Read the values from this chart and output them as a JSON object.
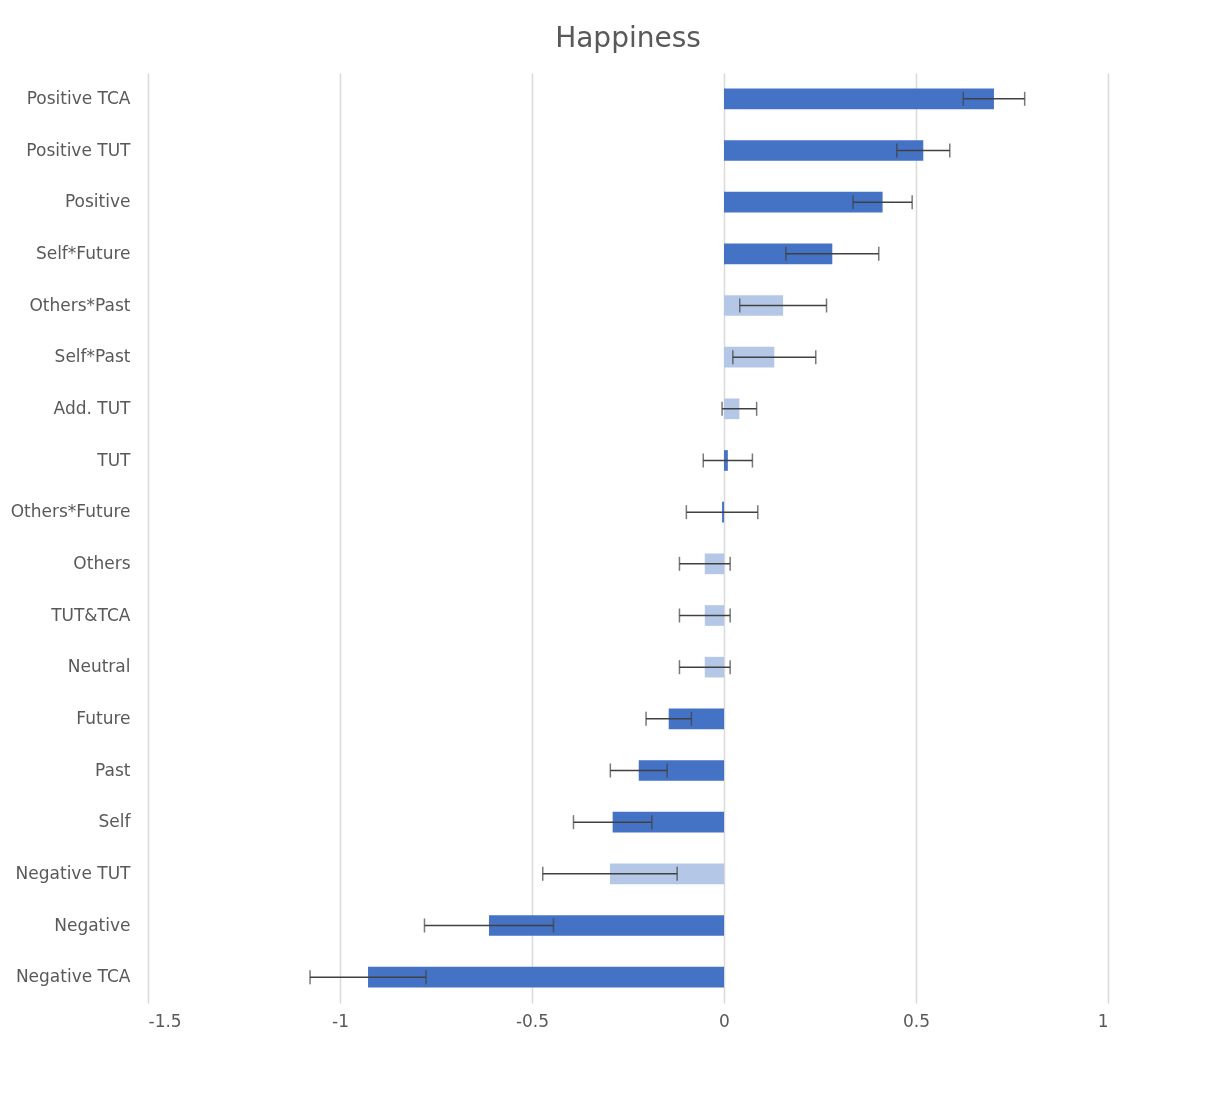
{
  "chart_data": {
    "type": "bar",
    "orientation": "horizontal",
    "title": "Happiness",
    "categories": [
      "Positive TCA",
      "Positive TUT",
      "Positive",
      "Self*Future",
      "Others*Past",
      "Self*Past",
      "Add. TUT",
      "TUT",
      "Others*Future",
      "Others",
      "TUT&TCA",
      "Neutral",
      "Future",
      "Past",
      "Self",
      "Negative TUT",
      "Negative",
      "Negative TCA"
    ],
    "values": [
      0.703,
      0.519,
      0.413,
      0.282,
      0.154,
      0.131,
      0.04,
      0.01,
      -0.005,
      -0.05,
      -0.05,
      -0.05,
      -0.144,
      -0.222,
      -0.29,
      -0.297,
      -0.612,
      -0.927
    ],
    "errors": [
      0.08,
      0.069,
      0.077,
      0.121,
      0.113,
      0.108,
      0.045,
      0.064,
      0.093,
      0.066,
      0.066,
      0.066,
      0.059,
      0.074,
      0.102,
      0.175,
      0.168,
      0.151
    ],
    "colors": [
      "#4472c4",
      "#4472c4",
      "#4472c4",
      "#4472c4",
      "#b4c7e7",
      "#b4c7e7",
      "#b4c7e7",
      "#4472c4",
      "#4472c4",
      "#b4c7e7",
      "#b4c7e7",
      "#b4c7e7",
      "#4472c4",
      "#4472c4",
      "#4472c4",
      "#b4c7e7",
      "#4472c4",
      "#4472c4"
    ],
    "xlim": [
      -1.5,
      1
    ],
    "xticks": [
      -1.5,
      -1,
      -0.5,
      0,
      0.5,
      1
    ],
    "grid": "x"
  }
}
